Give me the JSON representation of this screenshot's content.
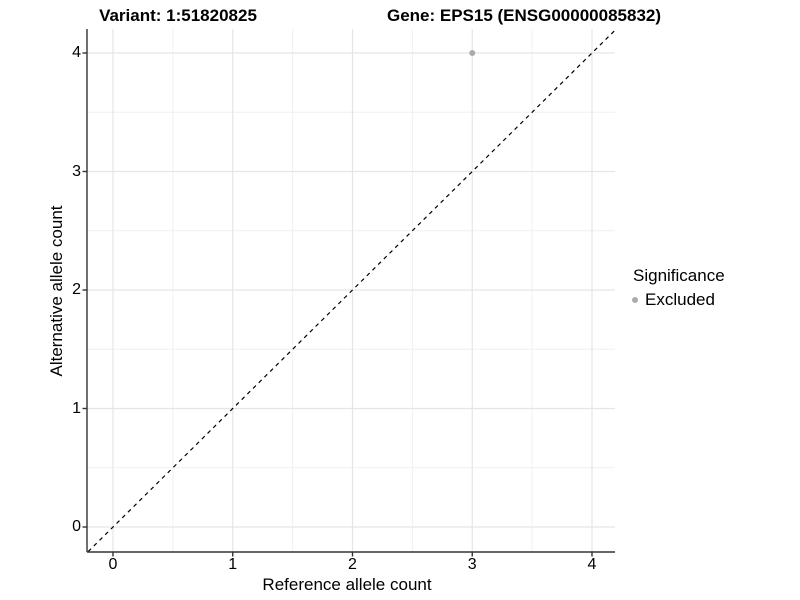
{
  "chart_data": {
    "type": "scatter",
    "titles": {
      "left": "Variant: 1:51820825",
      "right": "Gene: EPS15 (ENSG00000085832)"
    },
    "xlabel": "Reference allele count",
    "ylabel": "Alternative allele count",
    "xticks": [
      0,
      1,
      2,
      3,
      4
    ],
    "yticks": [
      0,
      1,
      2,
      3,
      4
    ],
    "xlim": [
      -0.22,
      4.2
    ],
    "ylim": [
      -0.21,
      4.2
    ],
    "grid": {
      "major": true,
      "minor": true,
      "minor_interval": 0.5
    },
    "reference_line": {
      "type": "identity y=x",
      "linetype": "dashed",
      "color": "#000000"
    },
    "series": [
      {
        "name": "Excluded",
        "color": "#ababab",
        "points": [
          {
            "x": 3,
            "y": 4
          }
        ]
      }
    ],
    "legend": {
      "title": "Significance",
      "position": "right",
      "items": [
        {
          "label": "Excluded",
          "color": "#ababab",
          "marker": "circle"
        }
      ]
    },
    "style_colors": {
      "axis_line": "#333333",
      "grid_major": "#e5e5e5",
      "grid_minor": "#f0f0f0",
      "panel_background": "#ffffff"
    }
  }
}
